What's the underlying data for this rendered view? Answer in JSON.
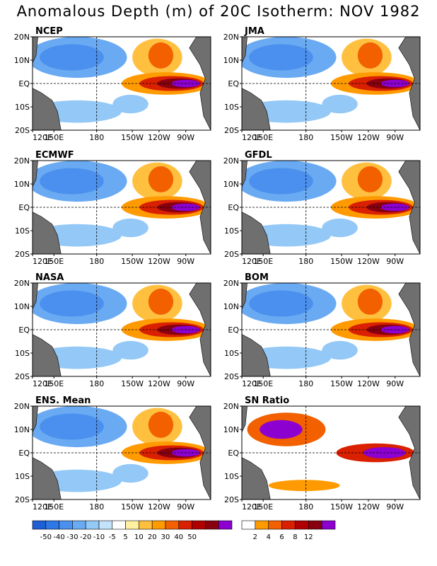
{
  "title": "Anomalous Depth (m) of 20C Isotherm: NOV 1982",
  "axes": {
    "lon_ticks": [
      "120E",
      "150E",
      "180",
      "150W",
      "120W",
      "90W"
    ],
    "lat_ticks": [
      "20N",
      "10N",
      "EQ",
      "10S",
      "20S"
    ]
  },
  "panels": [
    {
      "id": "ncep",
      "label": "NCEP"
    },
    {
      "id": "jma",
      "label": "JMA"
    },
    {
      "id": "ecmwf",
      "label": "ECMWF"
    },
    {
      "id": "gfdl",
      "label": "GFDL"
    },
    {
      "id": "nasa",
      "label": "NASA"
    },
    {
      "id": "bom",
      "label": "BOM"
    },
    {
      "id": "ens",
      "label": "ENS. Mean"
    },
    {
      "id": "sn",
      "label": "SN Ratio"
    }
  ],
  "legend_anomaly": {
    "colors": [
      "#1f5fd6",
      "#2f78e6",
      "#4b90ee",
      "#6aaaf2",
      "#94c8f6",
      "#c3e3fa",
      "#ffffff",
      "#fff0a0",
      "#ffc040",
      "#ff9a00",
      "#f26000",
      "#d92000",
      "#b00000",
      "#880010",
      "#8c00d0"
    ],
    "labels": [
      "-50",
      "-40",
      "-30",
      "-20",
      "-10",
      "-5",
      "5",
      "10",
      "20",
      "30",
      "40",
      "50"
    ]
  },
  "legend_sn": {
    "colors": [
      "#ffffff",
      "#ff9a00",
      "#f26000",
      "#d92000",
      "#b00000",
      "#880010",
      "#8c00d0"
    ],
    "labels": [
      "2",
      "4",
      "6",
      "8",
      "12"
    ]
  },
  "colors": {
    "land": "#6f6f6f",
    "purple": "#8c00d0"
  }
}
